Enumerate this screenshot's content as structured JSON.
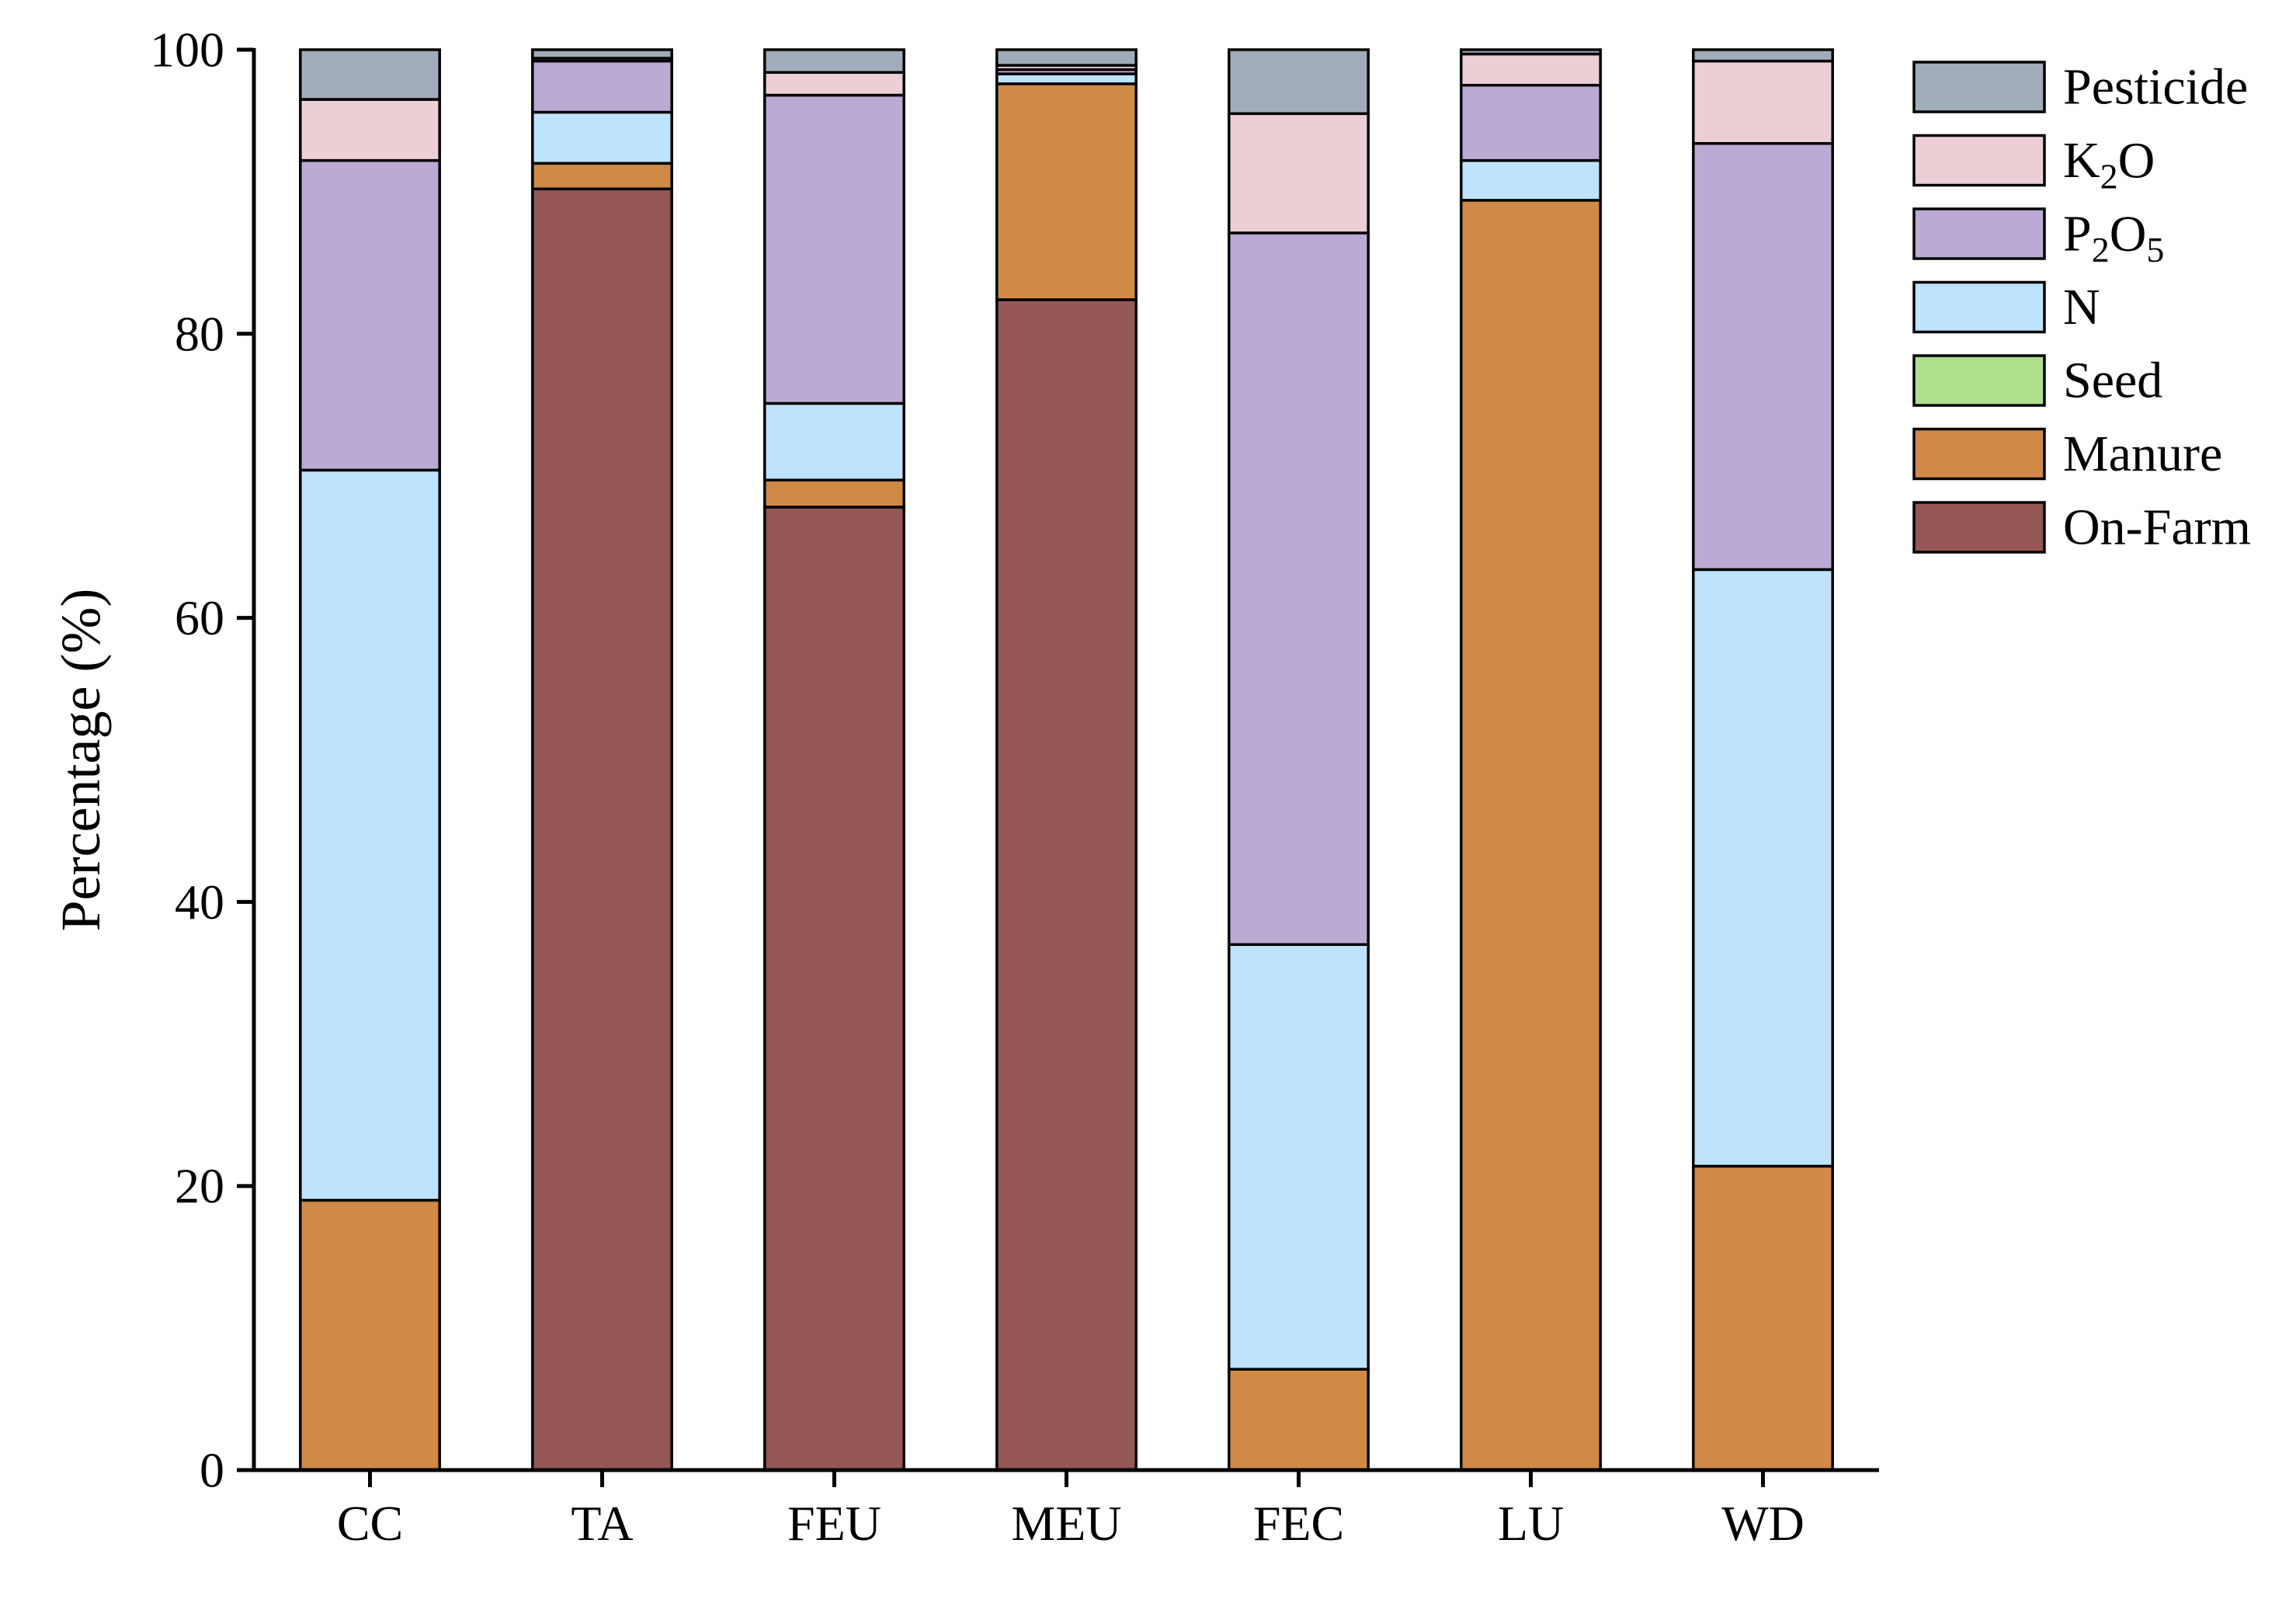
{
  "chart_data": {
    "type": "bar",
    "stacked": true,
    "title": "",
    "xlabel": "",
    "ylabel": "Percentage (%)",
    "ylim": [
      0,
      100
    ],
    "yticks": [
      0,
      20,
      40,
      60,
      80,
      100
    ],
    "grid": false,
    "legend_position": "right",
    "categories": [
      "CC",
      "TA",
      "FEU",
      "MEU",
      "FEC",
      "LU",
      "WD"
    ],
    "series": [
      {
        "name": "On-Farm",
        "color": "#955656",
        "values": [
          0,
          90.2,
          67.8,
          82.4,
          0,
          0,
          0
        ]
      },
      {
        "name": "Manure",
        "color": "#D08A46",
        "values": [
          19.0,
          1.8,
          1.9,
          15.2,
          7.1,
          89.4,
          21.4
        ]
      },
      {
        "name": "Seed",
        "color": "#AEE08E",
        "values": [
          0,
          0,
          0,
          0,
          0,
          0,
          0
        ]
      },
      {
        "name": "N",
        "color": "#BEE3FC",
        "values": [
          51.4,
          3.6,
          5.4,
          0.7,
          29.9,
          2.8,
          42.0
        ]
      },
      {
        "name": "P2O5",
        "color": "#BBAAD3",
        "values": [
          21.8,
          3.6,
          21.7,
          0.3,
          50.1,
          5.3,
          30.0
        ]
      },
      {
        "name": "K2O",
        "color": "#EBCFD5",
        "values": [
          4.3,
          0.2,
          1.6,
          0.3,
          8.4,
          2.2,
          5.8
        ]
      },
      {
        "name": "Pesticide",
        "color": "#A0ACB9",
        "values": [
          3.5,
          0.6,
          1.6,
          1.1,
          4.5,
          0.3,
          0.8
        ]
      }
    ],
    "legend": [
      {
        "key": "pesticide",
        "label": "Pesticide",
        "base": "Pesticide",
        "color": "#A0ACB9"
      },
      {
        "key": "k2o",
        "label": "K2O",
        "base": "K",
        "sub": "2",
        "rest": "O",
        "color": "#EBCFD5"
      },
      {
        "key": "p2o5",
        "label": "P2O5",
        "base": "P",
        "sub": "2",
        "rest": "O",
        "sub2": "5",
        "color": "#BBAAD3"
      },
      {
        "key": "n",
        "label": "N",
        "base": "N",
        "color": "#BEE3FC"
      },
      {
        "key": "seed",
        "label": "Seed",
        "base": "Seed",
        "color": "#AEE08E"
      },
      {
        "key": "manure",
        "label": "Manure",
        "base": "Manure",
        "color": "#D08A46"
      },
      {
        "key": "on-farm",
        "label": "On-Farm",
        "base": "On-Farm",
        "color": "#955656"
      }
    ]
  }
}
